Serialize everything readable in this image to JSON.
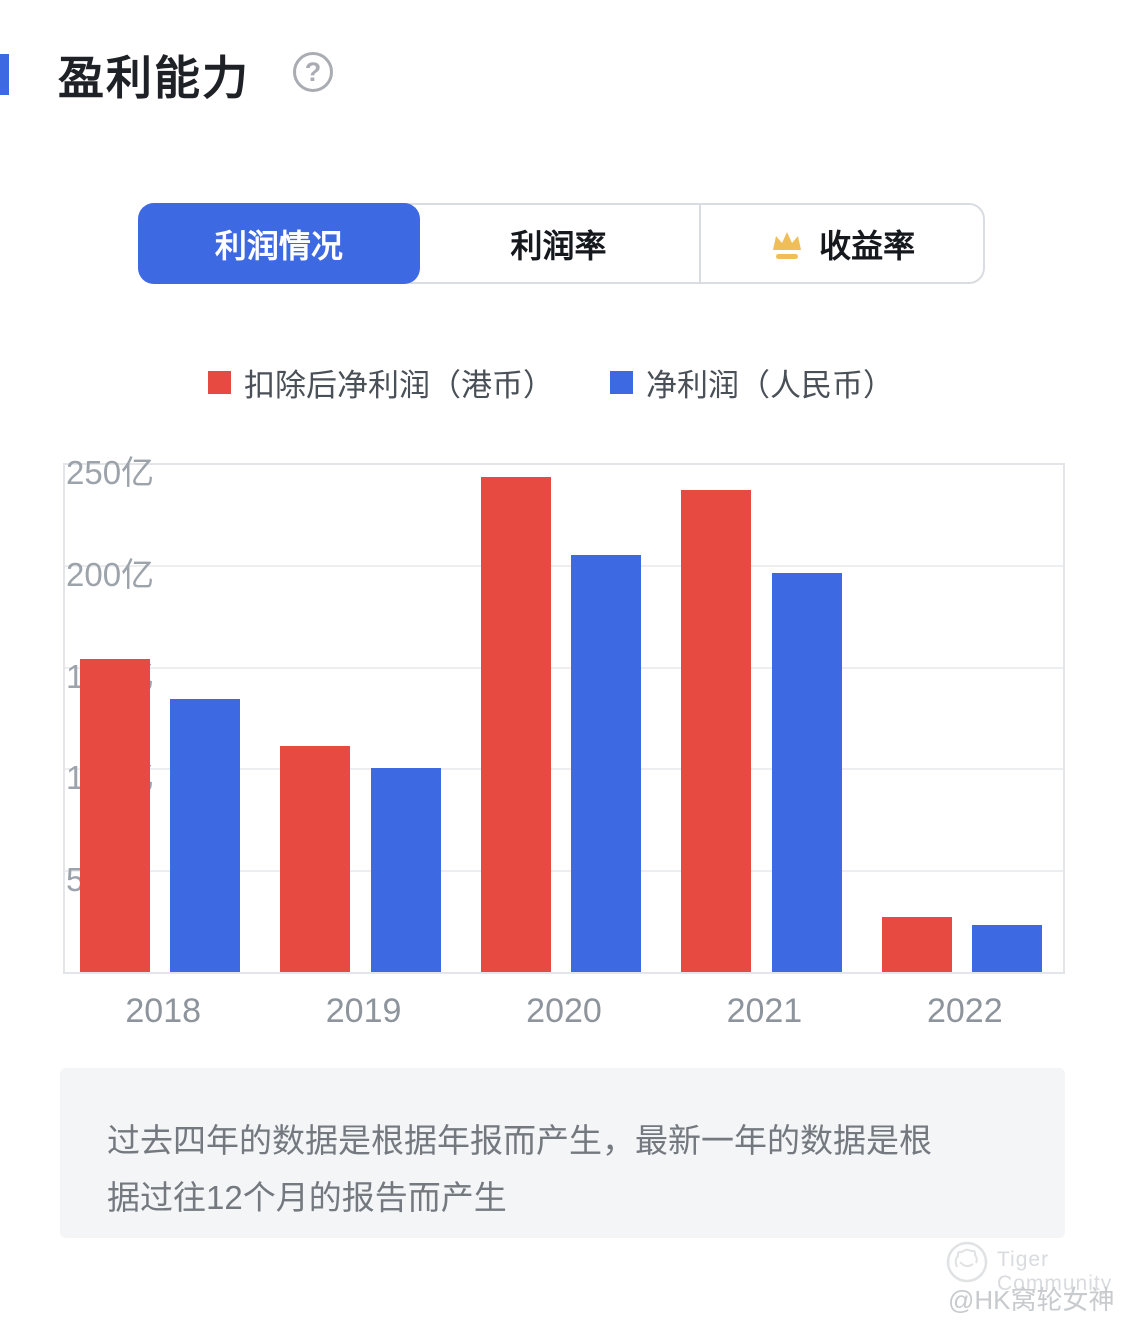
{
  "header": {
    "title": "盈利能力",
    "help_glyph": "?"
  },
  "tabs": [
    {
      "label": "利润情况",
      "active": true
    },
    {
      "label": "利润率",
      "active": false
    },
    {
      "label": "收益率",
      "active": false,
      "icon": "crown-icon"
    }
  ],
  "chart_data": {
    "type": "bar",
    "categories": [
      "2018",
      "2019",
      "2020",
      "2021",
      "2022"
    ],
    "series": [
      {
        "key": "deducted-net-profit-hkd",
        "name": "扣除后净利润（港币）",
        "color": "#E74A40",
        "values": [
          154,
          111,
          243,
          237,
          27
        ]
      },
      {
        "key": "net-profit-rmb",
        "name": "净利润（人民币）",
        "color": "#3D6AE2",
        "values": [
          134,
          100,
          205,
          196,
          23
        ]
      }
    ],
    "unit": "亿",
    "y_ticks": [
      "250亿",
      "200亿",
      "150亿",
      "100亿",
      "50亿"
    ],
    "ylim": [
      0,
      250
    ],
    "grid": true,
    "legend_position": "top"
  },
  "footnote": {
    "line1": "过去四年的数据是根据年报而产生，最新一年的数据是根",
    "line2": "据过往12个月的报告而产生"
  },
  "watermark": {
    "brand": "Tiger Community",
    "handle": "@HK窝轮女神Fifi"
  },
  "colors": {
    "accent_blue": "#3D6AE2",
    "bar_red": "#E74A40",
    "bar_blue": "#3D6AE2",
    "crown_gold": "#EFBE58",
    "grid": "#ECEEF0",
    "axis_text": "#9CA3AB",
    "footnote_bg": "#F4F5F7"
  }
}
